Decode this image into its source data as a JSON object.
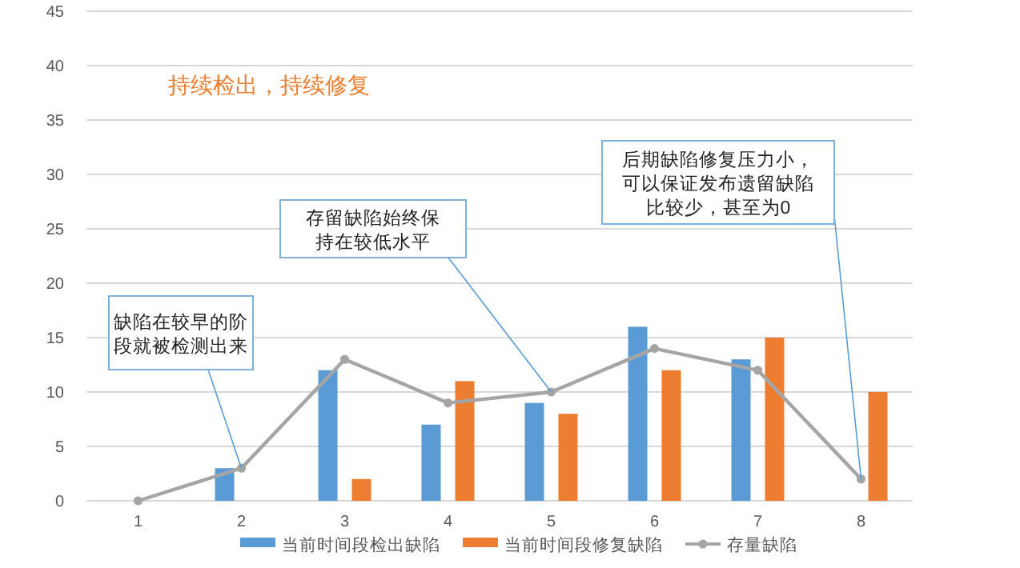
{
  "chart_data": {
    "type": "bar",
    "categories": [
      "1",
      "2",
      "3",
      "4",
      "5",
      "6",
      "7",
      "8"
    ],
    "series": [
      {
        "name": "当前时间段检出缺陷",
        "color": "#5b9bd5",
        "values": [
          null,
          3,
          12,
          7,
          9,
          16,
          13,
          null
        ]
      },
      {
        "name": "当前时间段修复缺陷",
        "color": "#ed7d31",
        "values": [
          null,
          null,
          2,
          11,
          8,
          12,
          15,
          10
        ]
      },
      {
        "name": "存量缺陷",
        "type": "line",
        "color": "#a5a5a5",
        "marker": "circle",
        "values": [
          0,
          3,
          13,
          9,
          10,
          14,
          12,
          2
        ]
      }
    ],
    "ylim": [
      0,
      45
    ],
    "yticks": [
      0,
      5,
      10,
      15,
      20,
      25,
      30,
      35,
      40,
      45
    ],
    "grid": "y",
    "legend": "bottom",
    "annotations": [
      "持续检出，持续修复",
      {
        "text": "缺陷在较早的阶段就被检测出来",
        "x": "2",
        "y": 3
      },
      {
        "text": "存留缺陷始终保持在较低水平",
        "x": "5",
        "y": 10
      },
      {
        "text": "后期缺陷修复压力小，可以保证发布遗留缺陷比较少，甚至为0",
        "x": "8",
        "y": 2
      }
    ]
  }
}
